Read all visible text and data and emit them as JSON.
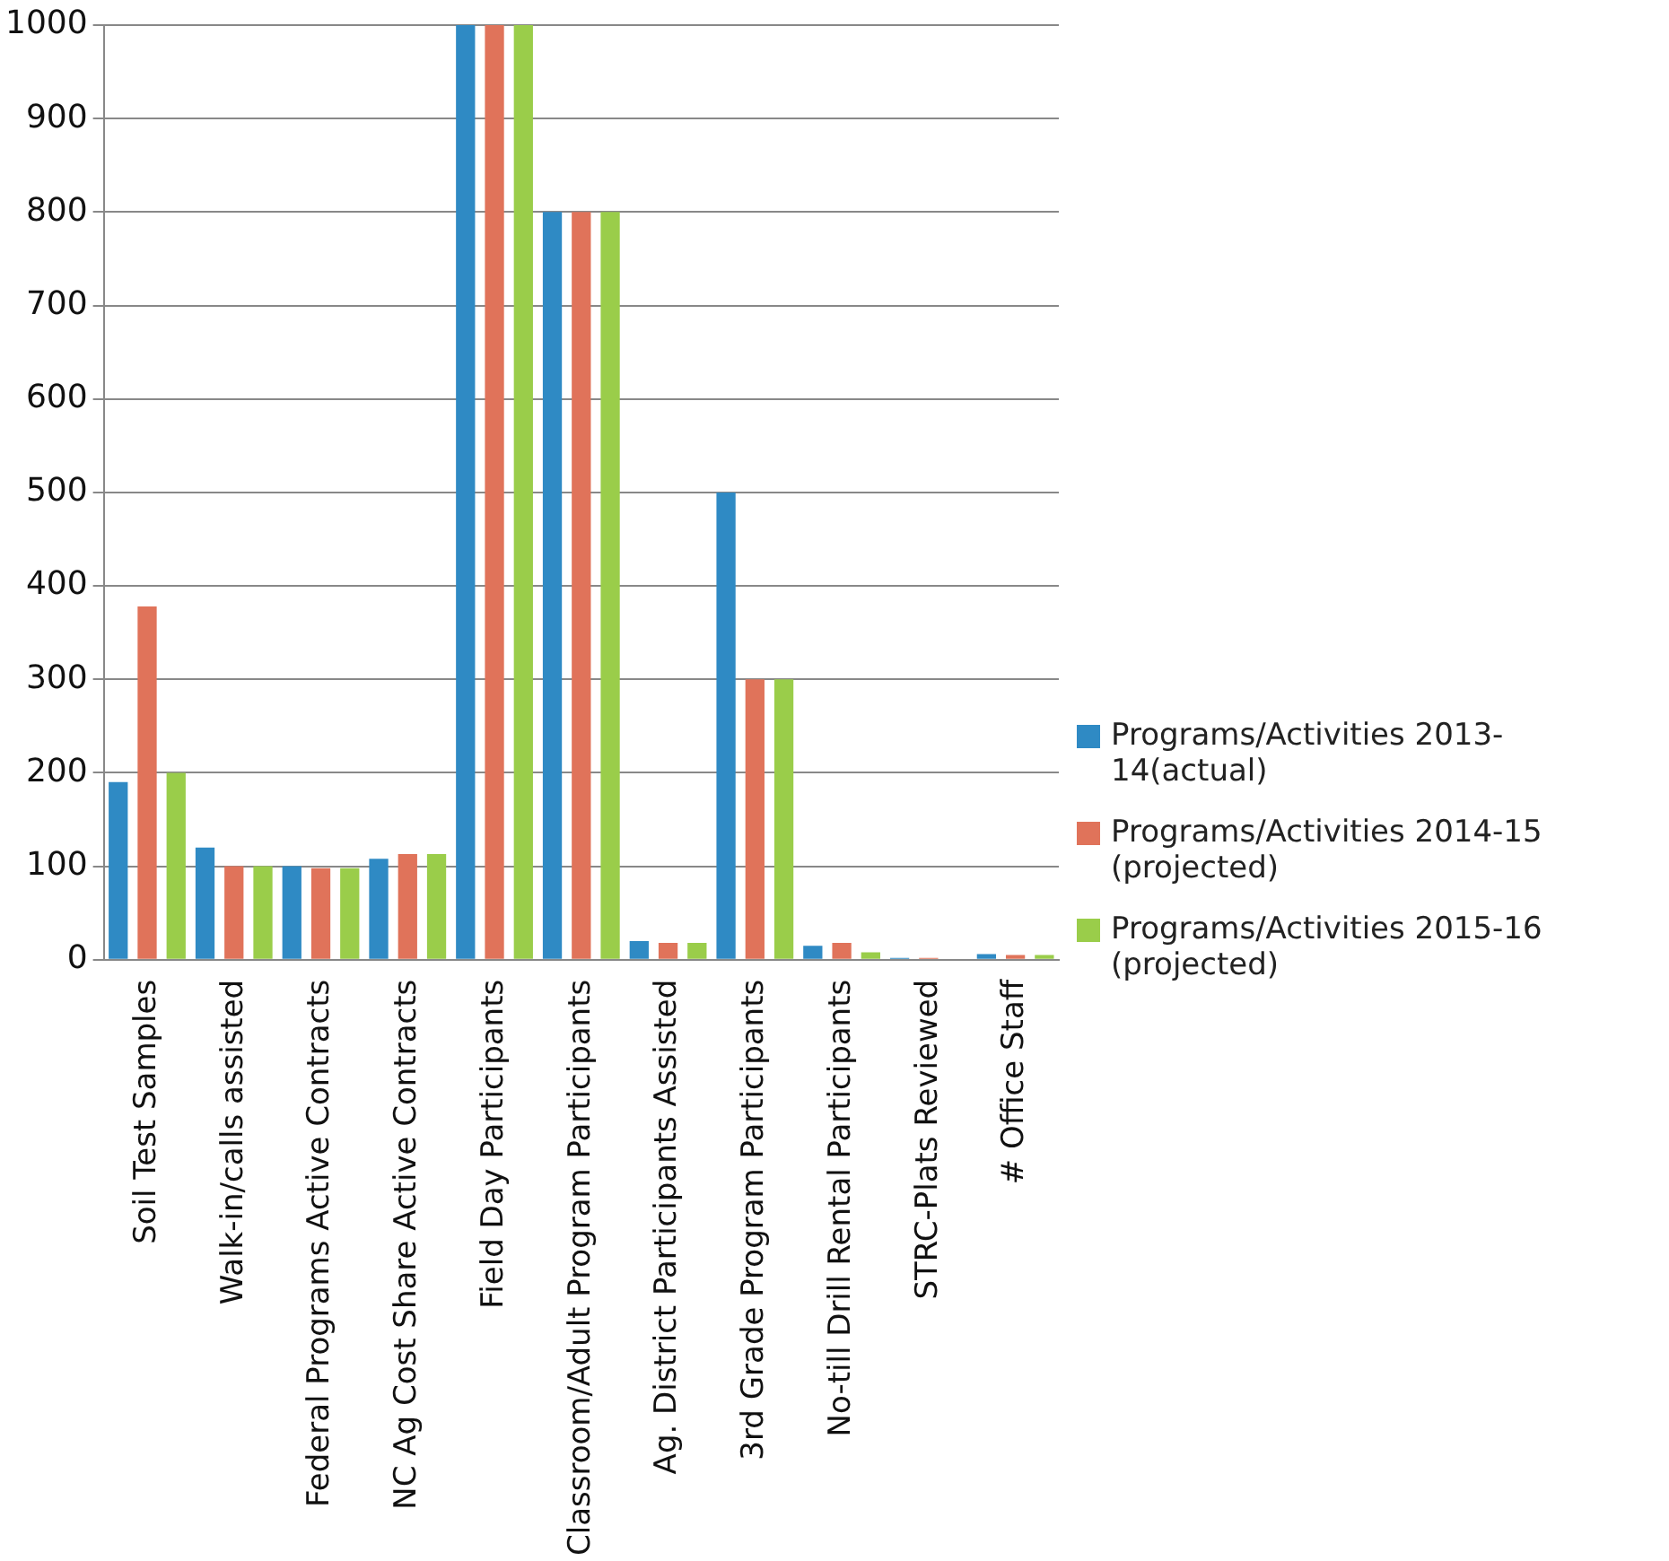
{
  "chart_data": {
    "type": "bar",
    "categories": [
      "Soil Test Samples",
      "Walk-in/calls assisted",
      "Federal Programs Active Contracts",
      "NC Ag Cost Share Active Contracts",
      "Field Day Participants",
      "Classroom/Adult Program Participants",
      "Ag. District Participants Assisted",
      "3rd Grade Program Participants",
      "No-till Drill Rental Participants",
      "STRC-Plats Reviewed",
      "# Office Staff"
    ],
    "series": [
      {
        "name": "Programs/Activities 2013-14(actual)",
        "color": "#2f8ac4",
        "values": [
          190,
          120,
          100,
          108,
          1000,
          800,
          20,
          500,
          15,
          2,
          6
        ]
      },
      {
        "name": "Programs/Activities 2014-15 (projected)",
        "color": "#e0735a",
        "values": [
          378,
          100,
          98,
          113,
          1000,
          800,
          18,
          300,
          18,
          2,
          5
        ]
      },
      {
        "name": "Programs/Activities 2015-16 (projected)",
        "color": "#9acd4a",
        "values": [
          200,
          100,
          98,
          113,
          1000,
          800,
          18,
          300,
          8,
          1,
          5
        ]
      }
    ],
    "ylim": [
      0,
      1000
    ],
    "yticks": [
      0,
      100,
      200,
      300,
      400,
      500,
      600,
      700,
      800,
      900,
      1000
    ],
    "grid": "y",
    "legend": "right"
  }
}
